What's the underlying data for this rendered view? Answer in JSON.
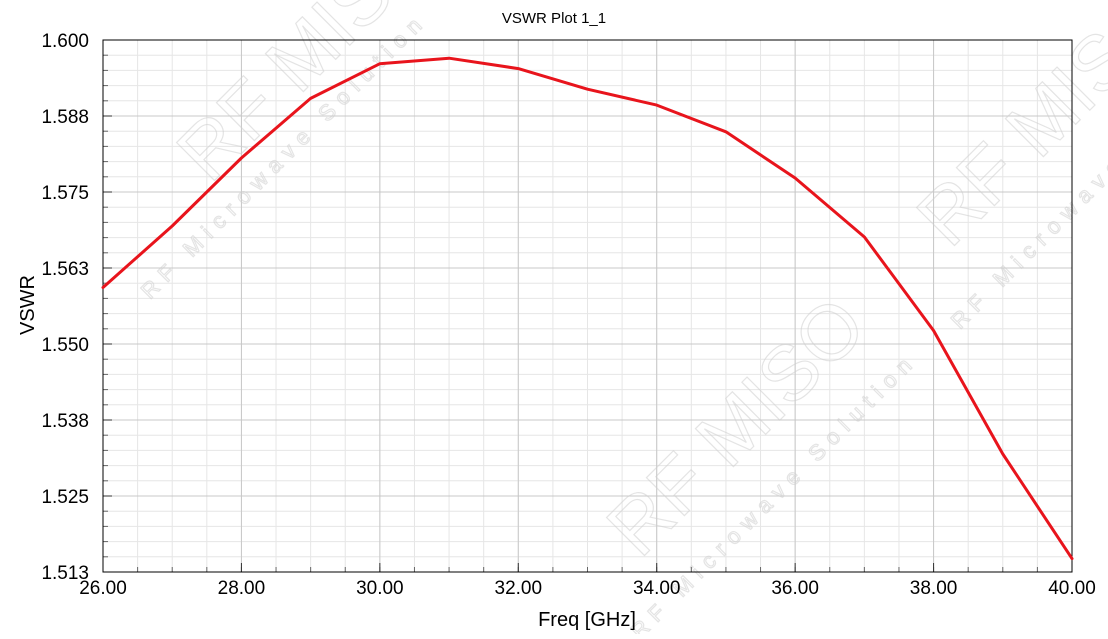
{
  "chart_data": {
    "type": "line",
    "title": "VSWR Plot 1_1",
    "xlabel": "Freq [GHz]",
    "ylabel": "VSWR",
    "xlim": [
      26.0,
      40.0
    ],
    "ylim": [
      1.5125,
      1.6
    ],
    "xticks": [
      "26.00",
      "28.00",
      "30.00",
      "32.00",
      "34.00",
      "36.00",
      "38.00",
      "40.00"
    ],
    "yticks": [
      "1.513",
      "1.525",
      "1.538",
      "1.550",
      "1.563",
      "1.575",
      "1.588",
      "1.600"
    ],
    "grid": true,
    "series": [
      {
        "color": "#e8141c",
        "x": [
          26,
          27,
          28,
          29,
          30,
          31,
          32,
          33,
          34,
          35,
          36,
          37,
          38,
          39,
          40
        ],
        "y": [
          1.5593,
          1.5694,
          1.5806,
          1.5904,
          1.5961,
          1.597,
          1.5953,
          1.5919,
          1.5893,
          1.5849,
          1.5773,
          1.5676,
          1.5522,
          1.5319,
          1.5147
        ]
      }
    ]
  },
  "watermark": {
    "brand": "RF MISO",
    "tagline": "RF Microwave Solution"
  }
}
